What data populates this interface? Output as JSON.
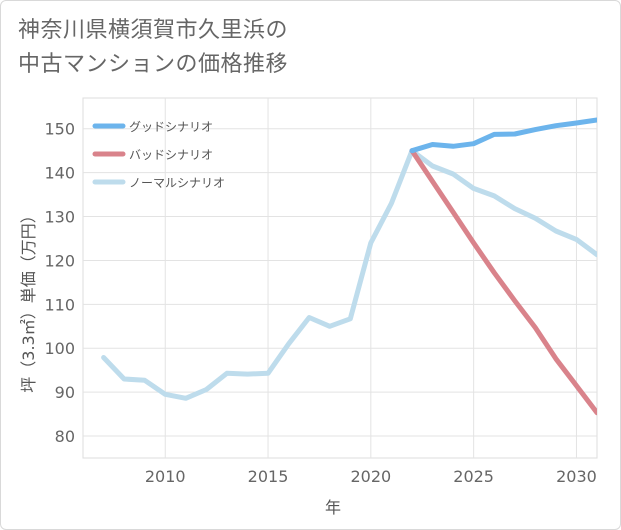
{
  "title_line1": "神奈川県横須賀市久里浜の",
  "title_line2": "中古マンションの価格推移",
  "chart_data": {
    "type": "line",
    "xlabel": "年",
    "ylabel": "坪（3.3㎡）単価（万円）",
    "xlim": [
      2006,
      2031
    ],
    "ylim": [
      75,
      157
    ],
    "xticks": [
      2010,
      2015,
      2020,
      2025,
      2030
    ],
    "yticks": [
      80,
      90,
      100,
      110,
      120,
      130,
      140,
      150
    ],
    "grid": true,
    "legend_position": "top-left",
    "series": [
      {
        "name": "グッドシナリオ",
        "color": "#6cb4ec",
        "points": [
          [
            2022,
            145.0
          ],
          [
            2023,
            146.4
          ],
          [
            2024,
            146.0
          ],
          [
            2025,
            146.6
          ],
          [
            2026,
            148.7
          ],
          [
            2027,
            148.8
          ],
          [
            2028,
            149.8
          ],
          [
            2029,
            150.7
          ],
          [
            2030,
            151.3
          ],
          [
            2031,
            152.0
          ]
        ]
      },
      {
        "name": "バッドシナリオ",
        "color": "#d9838b",
        "points": [
          [
            2022,
            145.0
          ],
          [
            2023,
            138.0
          ],
          [
            2024,
            131.0
          ],
          [
            2025,
            124.0
          ],
          [
            2026,
            117.2
          ],
          [
            2027,
            110.8
          ],
          [
            2028,
            104.7
          ],
          [
            2029,
            97.6
          ],
          [
            2030,
            91.5
          ],
          [
            2031,
            85.3
          ]
        ]
      },
      {
        "name": "ノーマルシナリオ",
        "color": "#bedcec",
        "points": [
          [
            2007,
            97.9
          ],
          [
            2008,
            93.0
          ],
          [
            2009,
            92.7
          ],
          [
            2010,
            89.5
          ],
          [
            2011,
            88.6
          ],
          [
            2012,
            90.6
          ],
          [
            2013,
            94.3
          ],
          [
            2014,
            94.1
          ],
          [
            2015,
            94.3
          ],
          [
            2016,
            101.0
          ],
          [
            2017,
            107.0
          ],
          [
            2018,
            105.0
          ],
          [
            2019,
            106.7
          ],
          [
            2020,
            124.0
          ],
          [
            2021,
            133.0
          ],
          [
            2022,
            145.0
          ],
          [
            2023,
            141.5
          ],
          [
            2024,
            139.7
          ],
          [
            2025,
            136.4
          ],
          [
            2026,
            134.7
          ],
          [
            2027,
            131.8
          ],
          [
            2028,
            129.6
          ],
          [
            2029,
            126.7
          ],
          [
            2030,
            124.8
          ],
          [
            2031,
            121.3
          ]
        ]
      }
    ]
  }
}
